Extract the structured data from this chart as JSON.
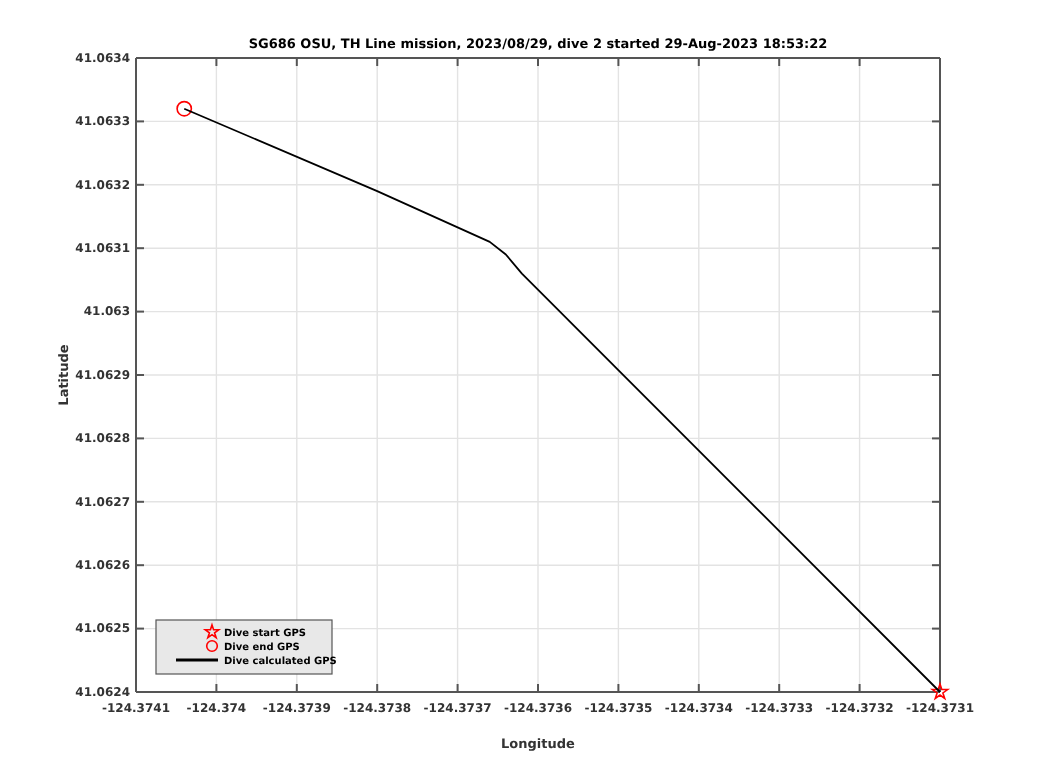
{
  "chart_data": {
    "type": "line",
    "title": "SG686 OSU, TH Line mission, 2023/08/29, dive 2 started 29-Aug-2023 18:53:22",
    "xlabel": "Longitude",
    "ylabel": "Latitude",
    "xlim": [
      -124.3741,
      -124.3731
    ],
    "xticks": [
      -124.3741,
      -124.374,
      -124.3739,
      -124.3738,
      -124.3737,
      -124.3736,
      -124.3735,
      -124.3734,
      -124.3733,
      -124.3732,
      -124.3731
    ],
    "ylim": [
      41.0624,
      41.0634
    ],
    "yticks": [
      41.0624,
      41.0625,
      41.0626,
      41.0627,
      41.0628,
      41.0629,
      41.063,
      41.0631,
      41.0632,
      41.0633,
      41.0634
    ],
    "grid": true,
    "legend": "bottom left",
    "series": [
      {
        "name": "Dive start GPS",
        "type": "scatter",
        "marker": "star",
        "color": "#ff0000",
        "x": [
          -124.3731
        ],
        "values": [
          41.0624
        ]
      },
      {
        "name": "Dive end GPS",
        "type": "scatter",
        "marker": "circle",
        "color": "#ff0000",
        "x": [
          -124.37404
        ],
        "values": [
          41.06332
        ]
      },
      {
        "name": "Dive calculated GPS",
        "type": "line",
        "marker": "none",
        "color": "#000000",
        "x": [
          -124.3731,
          -124.37362,
          -124.37364,
          -124.37366,
          -124.3738,
          -124.37404
        ],
        "values": [
          41.0624,
          41.06306,
          41.06309,
          41.06311,
          41.06319,
          41.06332
        ]
      }
    ]
  }
}
